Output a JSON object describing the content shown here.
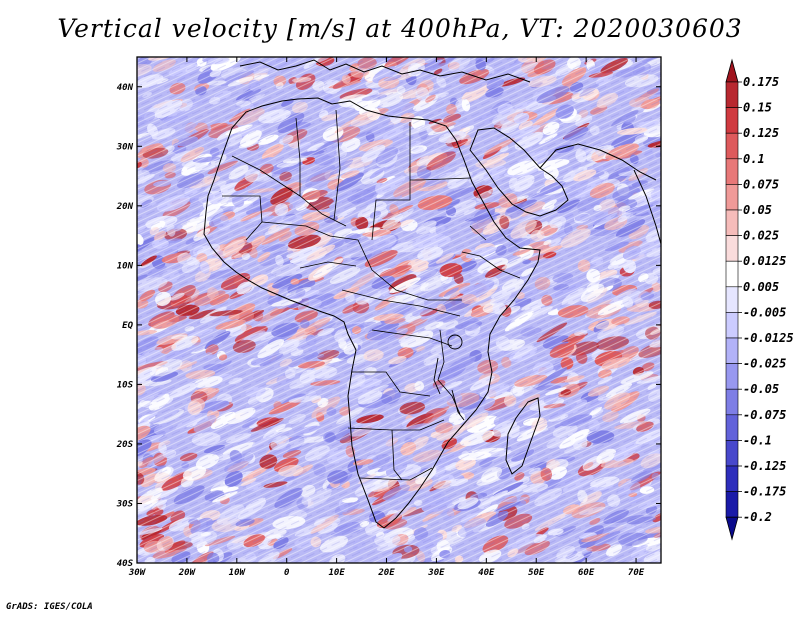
{
  "title": "Vertical velocity [m/s] at 400hPa, VT: 2020030603",
  "credit": "GrADS: IGES/COLA",
  "map": {
    "lon_labels": [
      "30W",
      "20W",
      "10W",
      "0",
      "10E",
      "20E",
      "30E",
      "40E",
      "50E",
      "60E",
      "70E"
    ],
    "lat_labels": [
      "40N",
      "30N",
      "20N",
      "10N",
      "EQ",
      "10S",
      "20S",
      "30S",
      "40S"
    ],
    "lon_range": [
      -30,
      75
    ],
    "lat_range": [
      -40,
      45
    ]
  },
  "colorbar": {
    "labels": [
      "0.175",
      "0.15",
      "0.125",
      "0.1",
      "0.075",
      "0.05",
      "0.025",
      "0.0125",
      "0.005",
      "-0.005",
      "-0.0125",
      "-0.025",
      "-0.05",
      "-0.075",
      "-0.1",
      "-0.125",
      "-0.175",
      "-0.2"
    ],
    "colors": [
      "#a0141e",
      "#b82830",
      "#d03a40",
      "#de5a5c",
      "#e87878",
      "#f09a98",
      "#f6bcba",
      "#fadcdc",
      "#ffffff",
      "#e6e6ff",
      "#ccccff",
      "#b2b2f8",
      "#9898f0",
      "#7e7ee6",
      "#6262da",
      "#4848cc",
      "#2e2ebc",
      "#1a1aa8",
      "#0a0a8c"
    ]
  },
  "colors": {
    "neutral": "#ffffff",
    "blue_mid": "#8f8ff0",
    "blue_light": "#c8c8fa",
    "red_mid": "#ea8686",
    "red_dark": "#a8141e"
  }
}
